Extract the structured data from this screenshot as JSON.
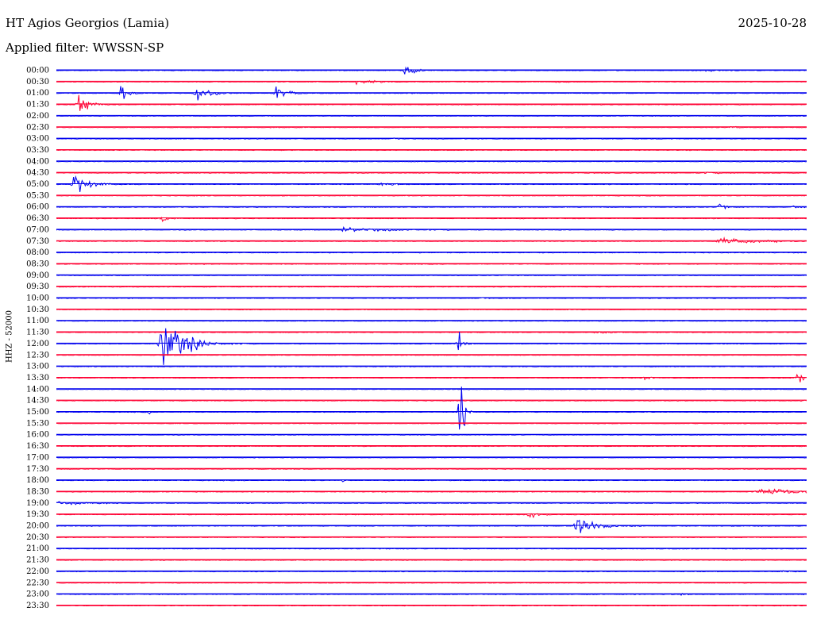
{
  "header": {
    "station": "HT Agios Georgios (Lamia)",
    "date": "2025-10-28",
    "filter": "Applied filter: WWSSN-SP"
  },
  "chart_data": {
    "type": "line",
    "title": "HT Agios Georgios (Lamia)",
    "ylabel": "HHZ - 52000",
    "xlabel": "",
    "row_times": [
      "00:00",
      "00:30",
      "01:00",
      "01:30",
      "02:00",
      "02:30",
      "03:00",
      "03:30",
      "04:00",
      "04:30",
      "05:00",
      "05:30",
      "06:00",
      "06:30",
      "07:00",
      "07:30",
      "08:00",
      "08:30",
      "09:00",
      "09:30",
      "10:00",
      "10:30",
      "11:00",
      "11:30",
      "12:00",
      "12:30",
      "13:00",
      "13:30",
      "14:00",
      "14:30",
      "15:00",
      "15:30",
      "16:00",
      "16:30",
      "17:00",
      "17:30",
      "18:00",
      "18:30",
      "19:00",
      "19:30",
      "20:00",
      "20:30",
      "21:00",
      "21:30",
      "22:00",
      "22:30",
      "23:00",
      "23:30"
    ],
    "row_minutes": 30,
    "colors": [
      "#0000ee",
      "#ff0033"
    ],
    "grid": false,
    "events": [
      {
        "row": "00:00",
        "minute": 14,
        "amplitude": 10,
        "duration": 0.8
      },
      {
        "row": "00:00",
        "minute": 26,
        "amplitude": 3,
        "duration": 1.0
      },
      {
        "row": "00:30",
        "minute": 12,
        "amplitude": 3,
        "duration": 2.5
      },
      {
        "row": "00:30",
        "minute": 20,
        "amplitude": 2,
        "duration": 1.5
      },
      {
        "row": "01:00",
        "minute": 2.6,
        "amplitude": 18,
        "duration": 0.6
      },
      {
        "row": "01:00",
        "minute": 5.6,
        "amplitude": 14,
        "duration": 1.2
      },
      {
        "row": "01:00",
        "minute": 8.8,
        "amplitude": 16,
        "duration": 0.8
      },
      {
        "row": "01:30",
        "minute": 0.9,
        "amplitude": 16,
        "duration": 1.0
      },
      {
        "row": "02:30",
        "minute": 8.5,
        "amplitude": 2,
        "duration": 2.0
      },
      {
        "row": "02:30",
        "minute": 27,
        "amplitude": 3,
        "duration": 0.8
      },
      {
        "row": "03:00",
        "minute": 13.5,
        "amplitude": 4,
        "duration": 0.4
      },
      {
        "row": "04:30",
        "minute": 26,
        "amplitude": 2,
        "duration": 1.2
      },
      {
        "row": "05:00",
        "minute": 0.7,
        "amplitude": 18,
        "duration": 1.3
      },
      {
        "row": "05:00",
        "minute": 13,
        "amplitude": 4,
        "duration": 1.2
      },
      {
        "row": "06:00",
        "minute": 26.5,
        "amplitude": 5,
        "duration": 0.7
      },
      {
        "row": "06:00",
        "minute": 29.5,
        "amplitude": 4,
        "duration": 0.6
      },
      {
        "row": "06:30",
        "minute": 4.2,
        "amplitude": 6,
        "duration": 0.6
      },
      {
        "row": "07:00",
        "minute": 11.5,
        "amplitude": 5,
        "duration": 3.5
      },
      {
        "row": "07:30",
        "minute": 26.5,
        "amplitude": 7,
        "duration": 3.0
      },
      {
        "row": "10:00",
        "minute": 17,
        "amplitude": 2,
        "duration": 0.8
      },
      {
        "row": "11:30",
        "minute": 21.5,
        "amplitude": 2,
        "duration": 2.0
      },
      {
        "row": "12:00",
        "minute": 4.2,
        "amplitude": 48,
        "duration": 1.8
      },
      {
        "row": "12:00",
        "minute": 16.1,
        "amplitude": 30,
        "duration": 0.4
      },
      {
        "row": "13:30",
        "minute": 23.5,
        "amplitude": 3,
        "duration": 0.8
      },
      {
        "row": "13:30",
        "minute": 29.6,
        "amplitude": 8,
        "duration": 0.9
      },
      {
        "row": "14:30",
        "minute": 29.8,
        "amplitude": 2,
        "duration": 1.5
      },
      {
        "row": "15:00",
        "minute": 3.7,
        "amplitude": 3,
        "duration": 0.5
      },
      {
        "row": "15:00",
        "minute": 16.2,
        "amplitude": 105,
        "duration": 0.2
      },
      {
        "row": "18:00",
        "minute": 11.4,
        "amplitude": 3,
        "duration": 0.6
      },
      {
        "row": "18:30",
        "minute": 28,
        "amplitude": 5,
        "duration": 7.0
      },
      {
        "row": "19:00",
        "minute": 0,
        "amplitude": 3,
        "duration": 3.5
      },
      {
        "row": "19:30",
        "minute": 18.9,
        "amplitude": 14,
        "duration": 0.6
      },
      {
        "row": "20:00",
        "minute": 20.8,
        "amplitude": 18,
        "duration": 1.6
      },
      {
        "row": "22:00",
        "minute": 29,
        "amplitude": 2,
        "duration": 0.8
      },
      {
        "row": "23:00",
        "minute": 25,
        "amplitude": 2,
        "duration": 0.6
      }
    ]
  }
}
